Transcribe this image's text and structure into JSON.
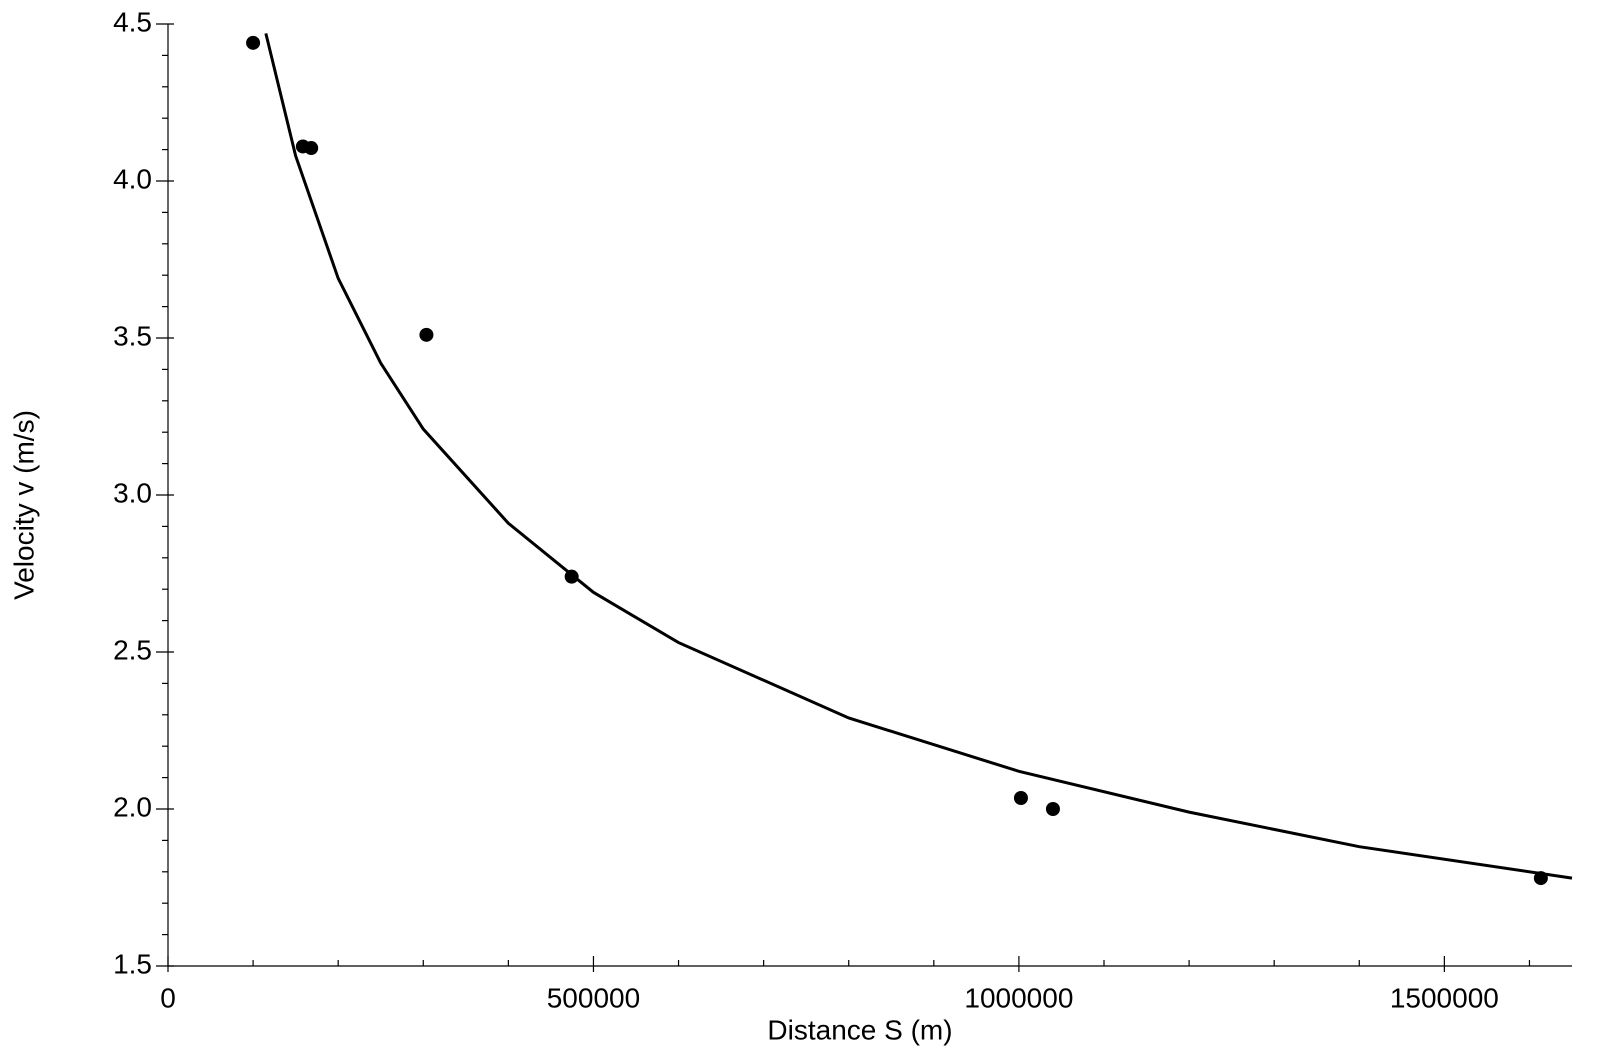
{
  "chart_data": {
    "type": "scatter",
    "x_label": "Distance S (m)",
    "y_label": "Velocity v (m/s)",
    "x": [
      100000,
      158500,
      168300,
      303700,
      474400,
      1002400,
      1040000,
      1613400
    ],
    "values": [
      4.44,
      4.11,
      4.105,
      3.51,
      2.74,
      2.035,
      2.0,
      1.78
    ],
    "color": "#000000",
    "curve": {
      "x": [
        115000,
        150000,
        200000,
        250000,
        300000,
        400000,
        500000,
        600000,
        800000,
        1000000,
        1200000,
        1400000,
        1650000
      ],
      "values": [
        4.47,
        4.08,
        3.69,
        3.42,
        3.21,
        2.91,
        2.69,
        2.53,
        2.29,
        2.12,
        1.99,
        1.88,
        1.78
      ]
    },
    "xlim": [
      0,
      1650000
    ],
    "ylim": [
      1.5,
      4.5
    ],
    "xticks": [
      0,
      500000,
      1000000,
      1500000
    ],
    "yticks": [
      1.5,
      {
        "value": 2,
        "label": "2.0"
      },
      2.5,
      {
        "value": 3,
        "label": "3.0"
      },
      3.5,
      {
        "value": 4,
        "label": "4.0"
      },
      4.5
    ],
    "xminorticks": [
      100000,
      200000,
      300000,
      400000,
      600000,
      700000,
      800000,
      900000,
      1100000,
      1200000,
      1300000,
      1400000,
      1600000
    ],
    "yminorticks": [
      1.6,
      1.7,
      1.8,
      1.9,
      2.1,
      2.2,
      2.3,
      2.4,
      2.6,
      2.7,
      2.8,
      2.9,
      3.1,
      3.2,
      3.3,
      3.4,
      3.6,
      3.7,
      3.8,
      3.9,
      4.1,
      4.2,
      4.3,
      4.4
    ]
  }
}
